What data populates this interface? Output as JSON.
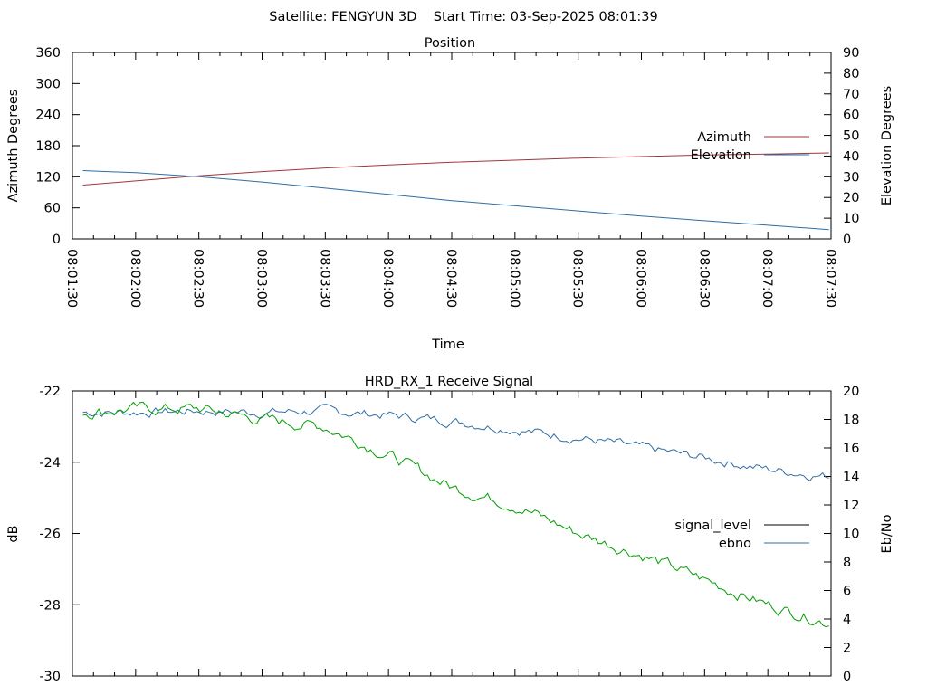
{
  "page_title": "Satellite: FENGYUN 3D    Start Time: 03-Sep-2025 08:01:39",
  "chart_data": [
    {
      "type": "line",
      "title": "Position",
      "xlabel": "Time",
      "ylabel": "Azimuth Degrees",
      "y2label": "Elevation Degrees",
      "x_ticks": [
        "08:01:30",
        "08:02:00",
        "08:02:30",
        "08:03:00",
        "08:03:30",
        "08:04:00",
        "08:04:30",
        "08:05:00",
        "08:05:30",
        "08:06:00",
        "08:06:30",
        "08:07:00",
        "08:07:30"
      ],
      "ylim": [
        0,
        360
      ],
      "y_ticks": [
        "0",
        "60",
        "120",
        "180",
        "240",
        "300",
        "360"
      ],
      "y2lim": [
        0,
        90
      ],
      "y2_ticks": [
        "0",
        "10",
        "20",
        "30",
        "40",
        "50",
        "60",
        "70",
        "80",
        "90"
      ],
      "legend_position": "right",
      "series": [
        {
          "name": "Azimuth",
          "axis": "left",
          "color": "#a0353b",
          "x": [
            "08:01:35",
            "08:02:00",
            "08:02:30",
            "08:03:00",
            "08:03:30",
            "08:04:00",
            "08:04:30",
            "08:05:00",
            "08:05:30",
            "08:06:00",
            "08:06:30",
            "08:07:00",
            "08:07:29"
          ],
          "values": [
            104,
            112,
            122,
            130,
            137,
            143,
            148,
            152,
            156,
            159,
            162,
            164,
            166
          ]
        },
        {
          "name": "Elevation",
          "axis": "right",
          "color": "#2f6da4",
          "x": [
            "08:01:35",
            "08:02:00",
            "08:02:30",
            "08:03:00",
            "08:03:30",
            "08:04:00",
            "08:04:30",
            "08:05:00",
            "08:05:30",
            "08:06:00",
            "08:06:30",
            "08:07:00",
            "08:07:29"
          ],
          "values": [
            33,
            32,
            30,
            27.5,
            24.5,
            21.5,
            18.5,
            16,
            13.5,
            11,
            8.8,
            6.6,
            4.5
          ]
        }
      ]
    },
    {
      "type": "line",
      "title": "HRD_RX_1 Receive Signal",
      "ylabel": "dB",
      "y2label": "Eb/No",
      "ylim": [
        -30,
        -22
      ],
      "y_ticks": [
        "-30",
        "-28",
        "-26",
        "-24",
        "-22"
      ],
      "y2lim": [
        0,
        20
      ],
      "y2_ticks": [
        "0",
        "2",
        "4",
        "6",
        "8",
        "10",
        "12",
        "14",
        "16",
        "18",
        "20"
      ],
      "legend_position": "right",
      "x_range": [
        "08:01:30",
        "08:07:30"
      ],
      "series": [
        {
          "name": "signal_level",
          "axis": "left",
          "color": "#000000",
          "x": [],
          "values": []
        },
        {
          "name": "ebno",
          "axis": "right",
          "color": "#2f6da4",
          "x": [
            "08:01:35",
            "08:02:00",
            "08:02:30",
            "08:03:00",
            "08:03:30",
            "08:04:00",
            "08:04:30",
            "08:05:00",
            "08:05:30",
            "08:06:00",
            "08:06:30",
            "08:07:00",
            "08:07:29"
          ],
          "values": [
            18.5,
            18.5,
            18.6,
            18.5,
            18.6,
            18.3,
            17.9,
            17.3,
            16.7,
            16.0,
            15.3,
            14.5,
            14.0
          ]
        },
        {
          "axis": "left",
          "color": "#00a000",
          "x": [
            "08:01:35",
            "08:02:00",
            "08:02:30",
            "08:03:00",
            "08:03:30",
            "08:04:00",
            "08:04:30",
            "08:05:00",
            "08:05:30",
            "08:06:00",
            "08:06:30",
            "08:07:00",
            "08:07:29"
          ],
          "values": [
            -22.6,
            -22.5,
            -22.5,
            -22.8,
            -23.0,
            -23.8,
            -24.7,
            -25.2,
            -26.0,
            -26.6,
            -27.3,
            -28.0,
            -28.5
          ]
        }
      ]
    }
  ]
}
